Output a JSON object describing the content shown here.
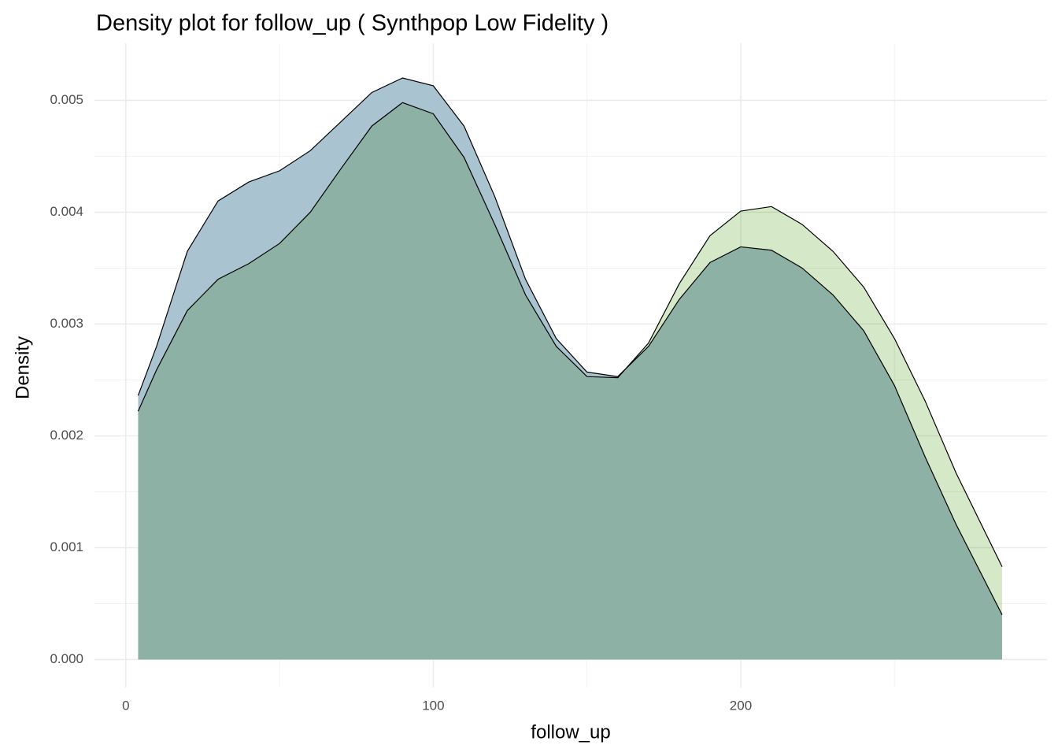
{
  "chart_data": {
    "type": "area",
    "title": "Density plot for follow_up ( Synthpop Low Fidelity )",
    "x_label": "follow_up",
    "y_label": "Density",
    "x": [
      4,
      10,
      20,
      30,
      40,
      50,
      60,
      70,
      80,
      90,
      100,
      110,
      120,
      130,
      140,
      150,
      160,
      170,
      180,
      190,
      200,
      210,
      220,
      230,
      240,
      250,
      260,
      270,
      285
    ],
    "series": [
      {
        "color": "#a9c3d1",
        "values": [
          0.00236,
          0.0028,
          0.00365,
          0.0041,
          0.00427,
          0.00437,
          0.00455,
          0.00481,
          0.00507,
          0.0052,
          0.00513,
          0.00477,
          0.00414,
          0.0034,
          0.00287,
          0.00257,
          0.00253,
          0.0028,
          0.00322,
          0.00355,
          0.00369,
          0.00366,
          0.0035,
          0.00326,
          0.00294,
          0.00245,
          0.00181,
          0.00121,
          0.0004
        ]
      },
      {
        "color": "#d5e8c8",
        "values": [
          0.00222,
          0.00259,
          0.00312,
          0.0034,
          0.00354,
          0.00372,
          0.004,
          0.00439,
          0.00477,
          0.00498,
          0.00488,
          0.00449,
          0.00389,
          0.00326,
          0.0028,
          0.00253,
          0.00252,
          0.00283,
          0.00336,
          0.00379,
          0.00401,
          0.00405,
          0.00389,
          0.00365,
          0.00333,
          0.00287,
          0.00231,
          0.00167,
          0.00083
        ]
      }
    ],
    "xlim": [
      -10.2,
      299.6
    ],
    "ylim": [
      -0.00025,
      0.00551
    ],
    "xticks": [
      0,
      100,
      200
    ],
    "yticks": [
      {
        "value": 0,
        "label": "0.000"
      },
      {
        "value": 0.001,
        "label": "0.001"
      },
      {
        "value": 0.002,
        "label": "0.002"
      },
      {
        "value": 0.003,
        "label": "0.003"
      },
      {
        "value": 0.004,
        "label": "0.004"
      },
      {
        "value": 0.005,
        "label": "0.005"
      }
    ],
    "x_minor_ticks": [
      50,
      150,
      250
    ],
    "y_minor_ticks": [
      0.0005,
      0.0015,
      0.0025,
      0.0035,
      0.0045
    ],
    "grid": true
  }
}
